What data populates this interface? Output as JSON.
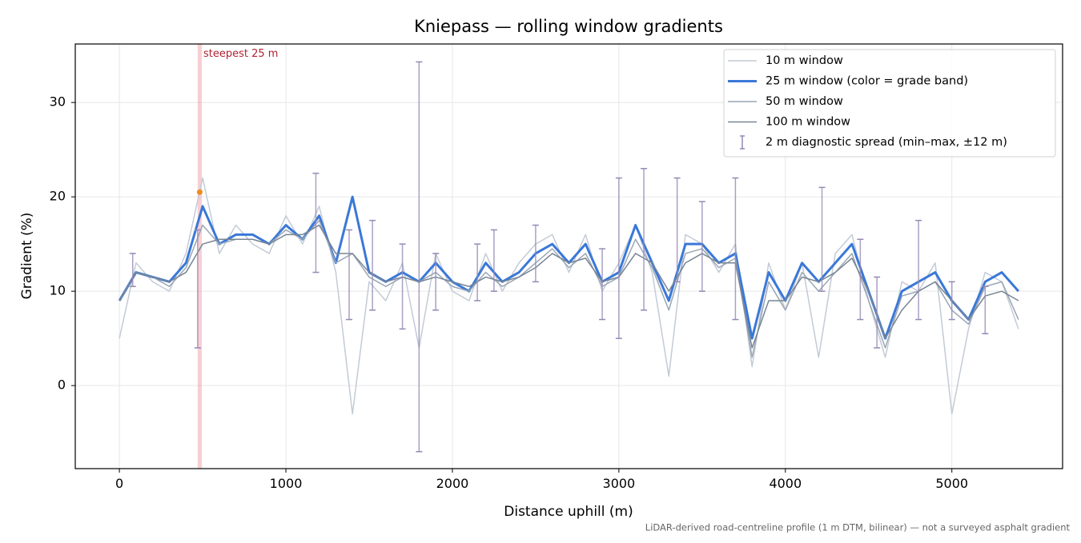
{
  "chart_data": {
    "type": "line",
    "title": "Kniepass — rolling window gradients",
    "x_label": "Distance uphill (m)",
    "y_label": "Gradient (%)",
    "footnote": "LiDAR-derived road-centreline profile (1 m DTM, bilinear) — not a surveyed asphalt gradient",
    "xlim": [
      -265,
      5665
    ],
    "ylim": [
      -8.8,
      36.2
    ],
    "xticks": [
      0,
      1000,
      2000,
      3000,
      4000,
      5000
    ],
    "yticks": [
      0,
      10,
      20,
      30
    ],
    "grid": true,
    "legend": "upper right",
    "x": [
      0,
      100,
      200,
      300,
      400,
      500,
      600,
      700,
      800,
      900,
      1000,
      1100,
      1200,
      1300,
      1400,
      1500,
      1600,
      1700,
      1800,
      1900,
      2000,
      2100,
      2200,
      2300,
      2400,
      2500,
      2600,
      2700,
      2800,
      2900,
      3000,
      3100,
      3200,
      3300,
      3400,
      3500,
      3600,
      3700,
      3800,
      3900,
      4000,
      4100,
      4200,
      4300,
      4400,
      4500,
      4600,
      4700,
      4800,
      4900,
      5000,
      5100,
      5200,
      5300,
      5400
    ],
    "series": [
      {
        "name": "10 m window",
        "color": "#c3cbd6",
        "width": 1.5,
        "values": [
          5,
          13,
          11,
          10,
          14,
          22,
          14,
          17,
          15,
          14,
          18,
          15,
          19,
          12,
          -3,
          11,
          9,
          13,
          4,
          14,
          10,
          9,
          14,
          10,
          13,
          15,
          16,
          12,
          16,
          10,
          13,
          17,
          12,
          1,
          16,
          15,
          12,
          15,
          2,
          13,
          8,
          13,
          3,
          14,
          16,
          9,
          3,
          11,
          10,
          13,
          -3,
          6,
          12,
          11,
          6
        ]
      },
      {
        "name": "25 m window (color = grade band)",
        "color": "#3a78d8",
        "width": 3,
        "values": [
          9,
          12,
          11.5,
          11,
          13,
          19,
          15,
          16,
          16,
          15,
          17,
          15.5,
          18,
          13,
          20,
          12,
          11,
          12,
          11,
          13,
          11,
          10,
          13,
          11,
          12,
          14,
          15,
          13,
          15,
          11,
          12,
          17,
          13,
          9,
          15,
          15,
          13,
          14,
          5,
          12,
          9,
          13,
          11,
          13,
          15,
          10,
          5,
          10,
          11,
          12,
          9,
          7,
          11,
          12,
          10
        ]
      },
      {
        "name": "50 m window",
        "color": "#9aa6b4",
        "width": 1.5,
        "values": [
          9,
          12,
          11.5,
          10.5,
          12.5,
          17,
          15,
          15.5,
          15.5,
          15,
          16.5,
          15.5,
          17.5,
          13,
          14,
          11.5,
          10.5,
          11.5,
          11,
          12,
          10.5,
          10,
          12,
          10.5,
          11.5,
          13,
          14.5,
          12.5,
          14,
          10.5,
          11.5,
          15.5,
          12.5,
          8,
          14,
          14.5,
          12.5,
          13.5,
          3,
          11,
          8,
          12,
          10,
          12,
          14,
          9,
          4,
          9.5,
          10,
          11,
          8,
          6.5,
          10.5,
          11,
          7
        ]
      },
      {
        "name": "100 m window",
        "color": "#788594",
        "width": 1.5,
        "values": [
          9,
          12,
          11.5,
          11,
          12,
          15,
          15.5,
          15.5,
          15.5,
          15,
          16,
          16,
          17,
          14,
          14,
          12,
          11,
          11.5,
          11,
          11.5,
          11,
          10.5,
          11.5,
          11,
          11.5,
          12.5,
          14,
          13,
          13.5,
          11,
          11.5,
          14,
          13,
          10,
          13,
          14,
          13,
          13,
          4,
          9,
          9,
          11.5,
          11,
          12,
          13.5,
          10,
          5,
          8,
          10,
          11,
          9,
          7,
          9.5,
          10,
          9
        ]
      }
    ],
    "errorbars": {
      "name": "2 m diagnostic spread (min–max, ±12 m)",
      "color": "#9489b5",
      "x": [
        80,
        470,
        1180,
        1380,
        1520,
        1700,
        1800,
        1900,
        2150,
        2250,
        2500,
        2900,
        3000,
        3150,
        3350,
        3500,
        3700,
        4220,
        4450,
        4550,
        4800,
        5000,
        5200
      ],
      "min": [
        10.5,
        4,
        12,
        7,
        8,
        6,
        -7,
        8,
        9,
        10,
        11,
        7,
        5,
        8,
        11,
        10,
        7,
        10,
        7,
        4,
        7,
        7,
        5.5
      ],
      "max": [
        14,
        16.5,
        22.5,
        16.5,
        17.5,
        15,
        34.3,
        14,
        15,
        16.5,
        17,
        14.5,
        22,
        23,
        22,
        19.5,
        22,
        21,
        15.5,
        11.5,
        17.5,
        11,
        10.5
      ]
    },
    "steepest": {
      "label": "steepest 25 m",
      "x": [
        470,
        495
      ],
      "peak": 20.5,
      "color": "#f0a0a8",
      "peak_color": "#f08c1c"
    }
  }
}
